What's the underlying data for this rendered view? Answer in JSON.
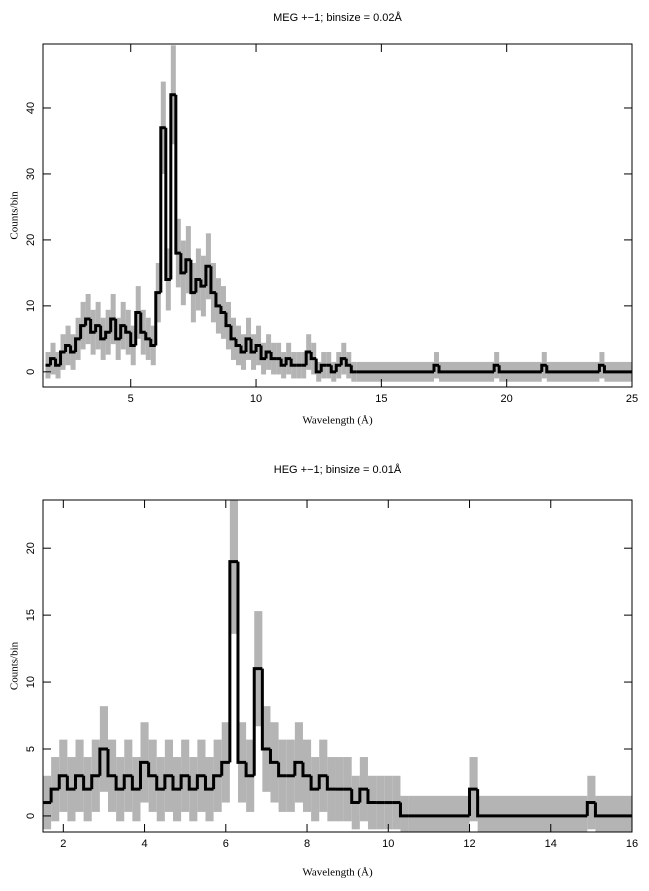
{
  "chart_data": [
    {
      "type": "histogram",
      "title": "MEG +−1; binsize = 0.02Å",
      "xlabel": "Wavelength (Å)",
      "ylabel": "Counts/bin",
      "xlim": [
        1.5,
        25
      ],
      "xticks": [
        5,
        10,
        15,
        20,
        25
      ],
      "ylim": [
        -2.3,
        49.7
      ],
      "yticks": [
        0,
        10,
        20,
        30,
        40
      ],
      "color": "#000000",
      "error_color": "#b4b4b4",
      "bins": [
        1.6,
        1.8,
        2.0,
        2.2,
        2.4,
        2.6,
        2.8,
        3.0,
        3.2,
        3.4,
        3.6,
        3.8,
        4.0,
        4.2,
        4.4,
        4.6,
        4.8,
        5.0,
        5.2,
        5.4,
        5.6,
        5.8,
        6.0,
        6.2,
        6.4,
        6.6,
        6.8,
        7.0,
        7.2,
        7.4,
        7.6,
        7.8,
        8.0,
        8.2,
        8.4,
        8.6,
        8.8,
        9.0,
        9.2,
        9.4,
        9.6,
        9.8,
        10.0,
        10.2,
        10.4,
        10.6,
        10.8,
        11.0,
        11.2,
        11.4,
        11.6,
        11.8,
        12.0,
        12.2,
        12.4,
        12.6,
        12.8,
        13.0,
        13.2,
        13.4,
        13.6,
        13.8,
        14.0,
        17.1,
        17.3,
        19.5,
        19.7,
        21.4,
        21.6,
        23.7,
        23.9,
        25
      ],
      "counts": [
        1,
        2,
        1,
        3,
        4,
        3,
        5,
        7,
        8,
        6,
        7,
        5,
        6,
        8,
        5,
        7,
        6,
        4,
        9,
        6,
        5,
        4,
        12,
        37,
        14,
        42,
        18,
        15,
        17,
        12,
        14,
        13,
        16,
        12,
        10,
        9,
        7,
        5,
        4,
        3,
        5,
        3,
        4,
        2,
        3,
        2,
        2,
        1,
        2,
        1,
        1,
        1,
        3,
        2,
        0,
        1,
        1,
        0,
        1,
        2,
        1,
        0,
        0,
        1,
        0,
        1,
        0,
        1,
        0,
        1,
        0
      ],
      "errors": [
        2,
        2.4,
        2,
        2.7,
        3,
        2.7,
        3.2,
        3.6,
        3.8,
        3.4,
        3.6,
        3.2,
        3.4,
        3.8,
        3.2,
        3.6,
        3.4,
        3,
        4,
        3.4,
        3.2,
        3,
        4.5,
        7,
        4.7,
        7.5,
        5.2,
        4.9,
        5.1,
        4.5,
        4.7,
        4.6,
        5,
        4.5,
        4.2,
        4,
        3.6,
        3.2,
        3,
        2.7,
        3.2,
        2.7,
        3,
        2.4,
        2.7,
        2.4,
        2.4,
        2,
        2.4,
        2,
        2,
        2,
        2.7,
        2.4,
        1.5,
        2,
        2,
        1.5,
        2,
        2.4,
        2,
        1.5,
        1.5,
        2,
        1.5,
        2,
        1.5,
        2,
        1.5,
        2,
        1.5
      ]
    },
    {
      "type": "histogram",
      "title": "HEG +−1; binsize = 0.01Å",
      "xlabel": "Wavelength (Å)",
      "ylabel": "Counts/bin",
      "xlim": [
        1.5,
        16
      ],
      "xticks": [
        2,
        4,
        6,
        8,
        10,
        12,
        14,
        16
      ],
      "ylim": [
        -1.2,
        23.6
      ],
      "yticks": [
        0,
        5,
        10,
        15,
        20
      ],
      "color": "#000000",
      "error_color": "#b4b4b4",
      "bins": [
        1.5,
        1.7,
        1.9,
        2.1,
        2.3,
        2.5,
        2.7,
        2.9,
        3.1,
        3.3,
        3.5,
        3.7,
        3.9,
        4.1,
        4.3,
        4.5,
        4.7,
        4.9,
        5.1,
        5.3,
        5.5,
        5.7,
        5.9,
        6.1,
        6.3,
        6.5,
        6.7,
        6.9,
        7.1,
        7.3,
        7.5,
        7.7,
        7.9,
        8.1,
        8.3,
        8.5,
        8.7,
        8.9,
        9.1,
        9.3,
        9.5,
        9.7,
        9.9,
        10.1,
        10.3,
        10.5,
        12.0,
        12.2,
        14.9,
        15.1,
        16
      ],
      "counts": [
        1,
        2,
        3,
        2,
        3,
        2,
        3,
        5,
        3,
        2,
        3,
        2,
        4,
        3,
        2,
        3,
        2,
        3,
        2,
        3,
        2,
        3,
        4,
        19,
        4,
        3,
        11,
        5,
        4,
        3,
        3,
        4,
        3,
        2,
        3,
        2,
        2,
        2,
        1,
        2,
        1,
        1,
        1,
        1,
        0,
        0,
        2,
        0,
        1,
        0
      ],
      "errors": [
        2,
        2.4,
        2.7,
        2.4,
        2.7,
        2.4,
        2.7,
        3.2,
        2.7,
        2.4,
        2.7,
        2.4,
        3,
        2.7,
        2.4,
        2.7,
        2.4,
        2.7,
        2.4,
        2.7,
        2.4,
        2.7,
        3,
        5.4,
        3,
        2.7,
        4.3,
        3.2,
        3,
        2.7,
        2.7,
        3,
        2.7,
        2.4,
        2.7,
        2.4,
        2.4,
        2.4,
        2,
        2.4,
        2,
        2,
        2,
        2,
        1.5,
        1.5,
        2.4,
        1.5,
        2,
        1.5
      ]
    }
  ]
}
